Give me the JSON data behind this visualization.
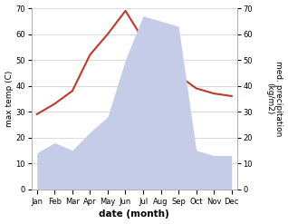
{
  "months": [
    "Jan",
    "Feb",
    "Mar",
    "Apr",
    "May",
    "Jun",
    "Jul",
    "Aug",
    "Sep",
    "Oct",
    "Nov",
    "Dec"
  ],
  "temperature": [
    29,
    33,
    38,
    52,
    60,
    69,
    58,
    46,
    44,
    39,
    37,
    36
  ],
  "precipitation": [
    14,
    18,
    15,
    22,
    28,
    50,
    67,
    65,
    63,
    15,
    13,
    13
  ],
  "temp_color": "#c0392b",
  "precip_fill_color": "#c5cce8",
  "ylim_left": [
    0,
    70
  ],
  "ylim_right": [
    0,
    70
  ],
  "xlabel": "date (month)",
  "ylabel_left": "max temp (C)",
  "ylabel_right": "med. precipitation\n(kg/m2)",
  "background_color": "#ffffff",
  "grid_color": "#cccccc",
  "tick_fontsize": 6,
  "label_fontsize": 6.5
}
